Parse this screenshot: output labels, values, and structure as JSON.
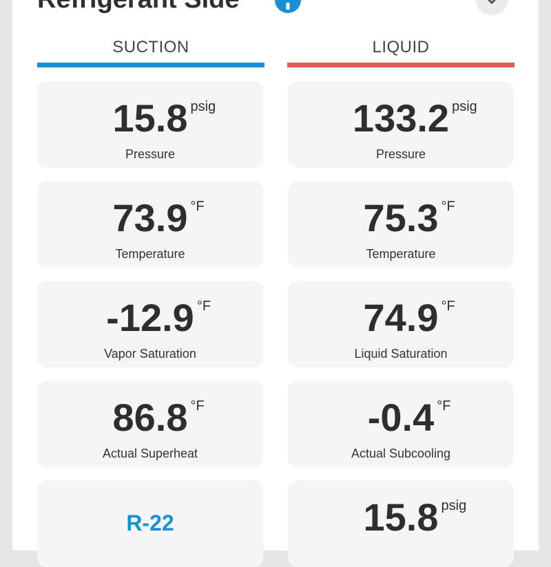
{
  "header": {
    "title": "Refrigerant Side"
  },
  "columns": [
    {
      "title": "SUCTION",
      "cards": [
        {
          "value": "15.8",
          "unit": "psig",
          "label": "Pressure"
        },
        {
          "value": "73.9",
          "unit": "°F",
          "label": "Temperature"
        },
        {
          "value": "-12.9",
          "unit": "°F",
          "label": "Vapor Saturation"
        },
        {
          "value": "86.8",
          "unit": "°F",
          "label": "Actual Superheat"
        },
        {
          "value": "R-22"
        }
      ]
    },
    {
      "title": "LIQUID",
      "cards": [
        {
          "value": "133.2",
          "unit": "psig",
          "label": "Pressure"
        },
        {
          "value": "75.3",
          "unit": "°F",
          "label": "Temperature"
        },
        {
          "value": "74.9",
          "unit": "°F",
          "label": "Liquid Saturation"
        },
        {
          "value": "-0.4",
          "unit": "°F",
          "label": "Actual Subcooling"
        },
        {
          "value": "15.8",
          "unit": "psig"
        }
      ]
    }
  ]
}
